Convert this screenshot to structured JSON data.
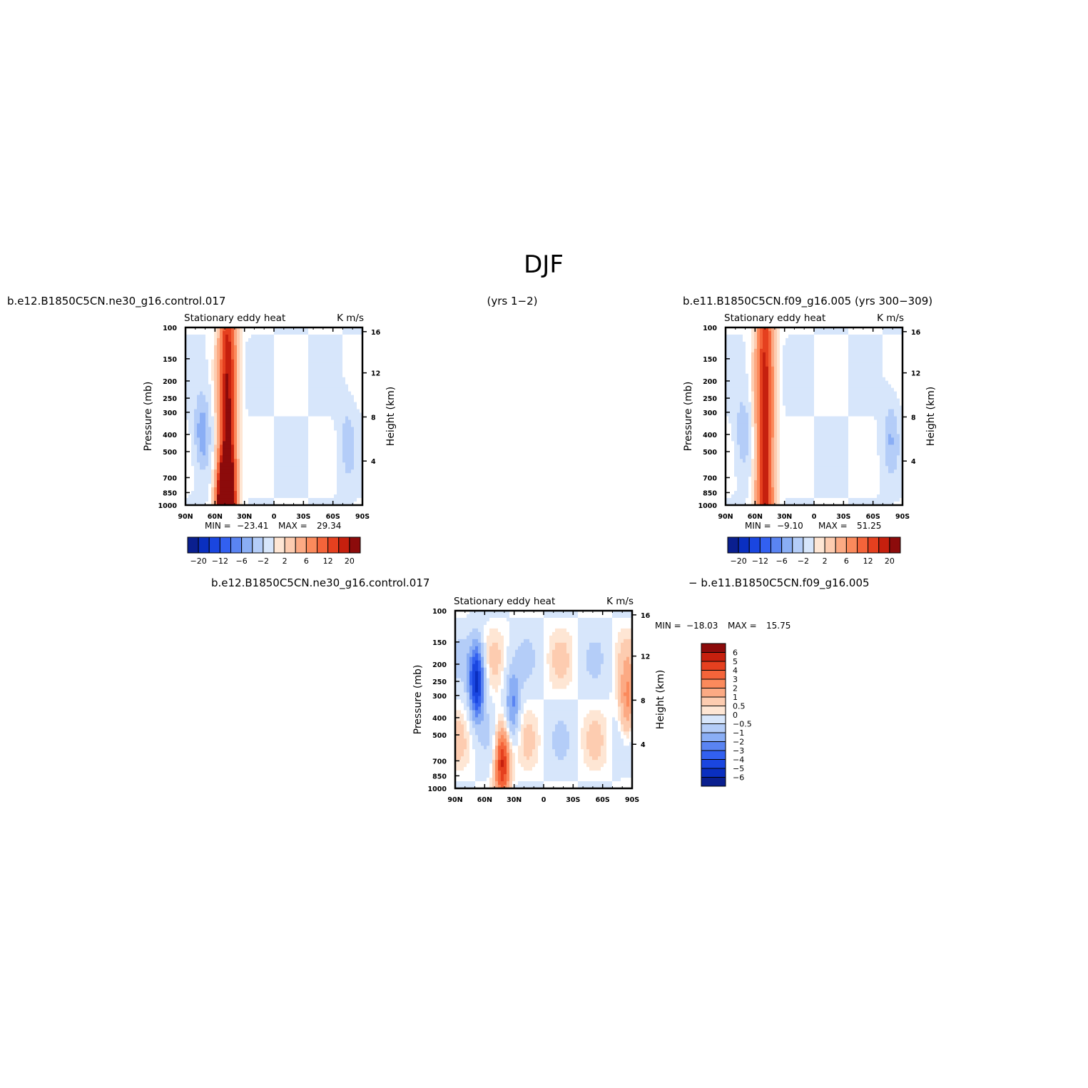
{
  "figure": {
    "title": "DJF",
    "header_left": "b.e12.B1850C5CN.ne30_g16.control.017",
    "header_mid": "(yrs 1−2)",
    "header_right": "b.e11.B1850C5CN.f09_g16.005 (yrs 300−309)",
    "diff_left": "b.e12.B1850C5CN.ne30_g16.control.017",
    "diff_right": "− b.e11.B1850C5CN.f09_g16.005"
  },
  "colors": {
    "neg": [
      "#0a1f8f",
      "#0a2fc0",
      "#1a46e0",
      "#3260f0",
      "#5a84f2",
      "#8aaef5",
      "#b4cdf8",
      "#d7e6fb"
    ],
    "zero": "#ffffff",
    "pos": [
      "#fee6d4",
      "#fdccb0",
      "#fcaa84",
      "#fb8a5c",
      "#f4643a",
      "#e5401f",
      "#c6200e",
      "#8c0b0b"
    ]
  },
  "chart_data": [
    {
      "type": "contour",
      "panel": "control",
      "title": "Stationary eddy heat",
      "units": "K m/s",
      "ylabel": "Pressure (mb)",
      "ylabel_right": "Height (km)",
      "x_ticks": [
        "90N",
        "60N",
        "30N",
        "0",
        "30S",
        "60S",
        "90S"
      ],
      "xlim": [
        90,
        -90
      ],
      "y_ticks": [
        100,
        150,
        200,
        250,
        300,
        400,
        500,
        700,
        850,
        1000
      ],
      "ylim": [
        1000,
        100
      ],
      "y_scale": "log",
      "y_ticks_right": [
        16,
        12,
        8,
        4
      ],
      "min_label": "MIN =",
      "min": "−23.41",
      "max_label": "MAX =",
      "max": "29.34",
      "colorbar_orientation": "horizontal",
      "colorbar_labels": [
        "−20",
        "−12",
        "−6",
        "−2",
        "2",
        "6",
        "12",
        "20"
      ],
      "features": [
        {
          "lat": 47,
          "p_center": 600,
          "p_span": [
            100,
            1000
          ],
          "value": 25,
          "sign": "positive band"
        },
        {
          "lat": 73,
          "p_center": 400,
          "value": -9,
          "sign": "negative core"
        },
        {
          "lat": -75,
          "p_center": 450,
          "value": -5,
          "sign": "negative core"
        },
        {
          "lat": 50,
          "p_center": 930,
          "value": 29.34,
          "sign": "maximum"
        }
      ]
    },
    {
      "type": "contour",
      "panel": "reference",
      "title": "Stationary eddy heat",
      "units": "K m/s",
      "ylabel": "Pressure (mb)",
      "ylabel_right": "Height (km)",
      "x_ticks": [
        "90N",
        "60N",
        "30N",
        "0",
        "30S",
        "60S",
        "90S"
      ],
      "xlim": [
        90,
        -90
      ],
      "y_ticks": [
        100,
        150,
        200,
        250,
        300,
        400,
        500,
        700,
        850,
        1000
      ],
      "ylim": [
        1000,
        100
      ],
      "y_scale": "log",
      "y_ticks_right": [
        16,
        12,
        8,
        4
      ],
      "min_label": "MIN =",
      "min": "−9.10",
      "max_label": "MAX =",
      "max": "51.25",
      "colorbar_orientation": "horizontal",
      "colorbar_labels": [
        "−20",
        "−12",
        "−6",
        "−2",
        "2",
        "6",
        "12",
        "20"
      ],
      "features": [
        {
          "lat": 50,
          "p_center": 500,
          "p_span": [
            100,
            1000
          ],
          "value": 22,
          "sign": "positive band"
        },
        {
          "lat": 72,
          "p_center": 400,
          "value": -6,
          "sign": "negative core"
        },
        {
          "lat": -78,
          "p_center": 420,
          "value": -6,
          "sign": "negative core"
        }
      ]
    },
    {
      "type": "contour",
      "panel": "difference",
      "title": "Stationary eddy heat",
      "units": "K m/s",
      "ylabel": "Pressure (mb)",
      "ylabel_right": "Height (km)",
      "x_ticks": [
        "90N",
        "60N",
        "30N",
        "0",
        "30S",
        "60S",
        "90S"
      ],
      "xlim": [
        90,
        -90
      ],
      "y_ticks": [
        100,
        150,
        200,
        250,
        300,
        400,
        500,
        700,
        850,
        1000
      ],
      "ylim": [
        1000,
        100
      ],
      "y_scale": "log",
      "y_ticks_right": [
        16,
        12,
        8,
        4
      ],
      "min_label": "MIN =",
      "min": "−18.03",
      "max_label": "MAX =",
      "max": "15.75",
      "colorbar_orientation": "vertical",
      "colorbar_labels": [
        "6",
        "5",
        "4",
        "3",
        "2",
        "1",
        "0.5",
        "0",
        "−0.5",
        "−1",
        "−2",
        "−3",
        "−4",
        "−5",
        "−6"
      ],
      "features": [
        {
          "lat": 68,
          "p_center": 250,
          "value": -6,
          "sign": "negative upper"
        },
        {
          "lat": 42,
          "p_center": 700,
          "value": 6,
          "sign": "positive lower"
        },
        {
          "lat": 32,
          "p_center": 350,
          "value": -3,
          "sign": "negative core"
        },
        {
          "lat": -85,
          "p_center": 350,
          "value": 3,
          "sign": "positive"
        }
      ]
    }
  ]
}
